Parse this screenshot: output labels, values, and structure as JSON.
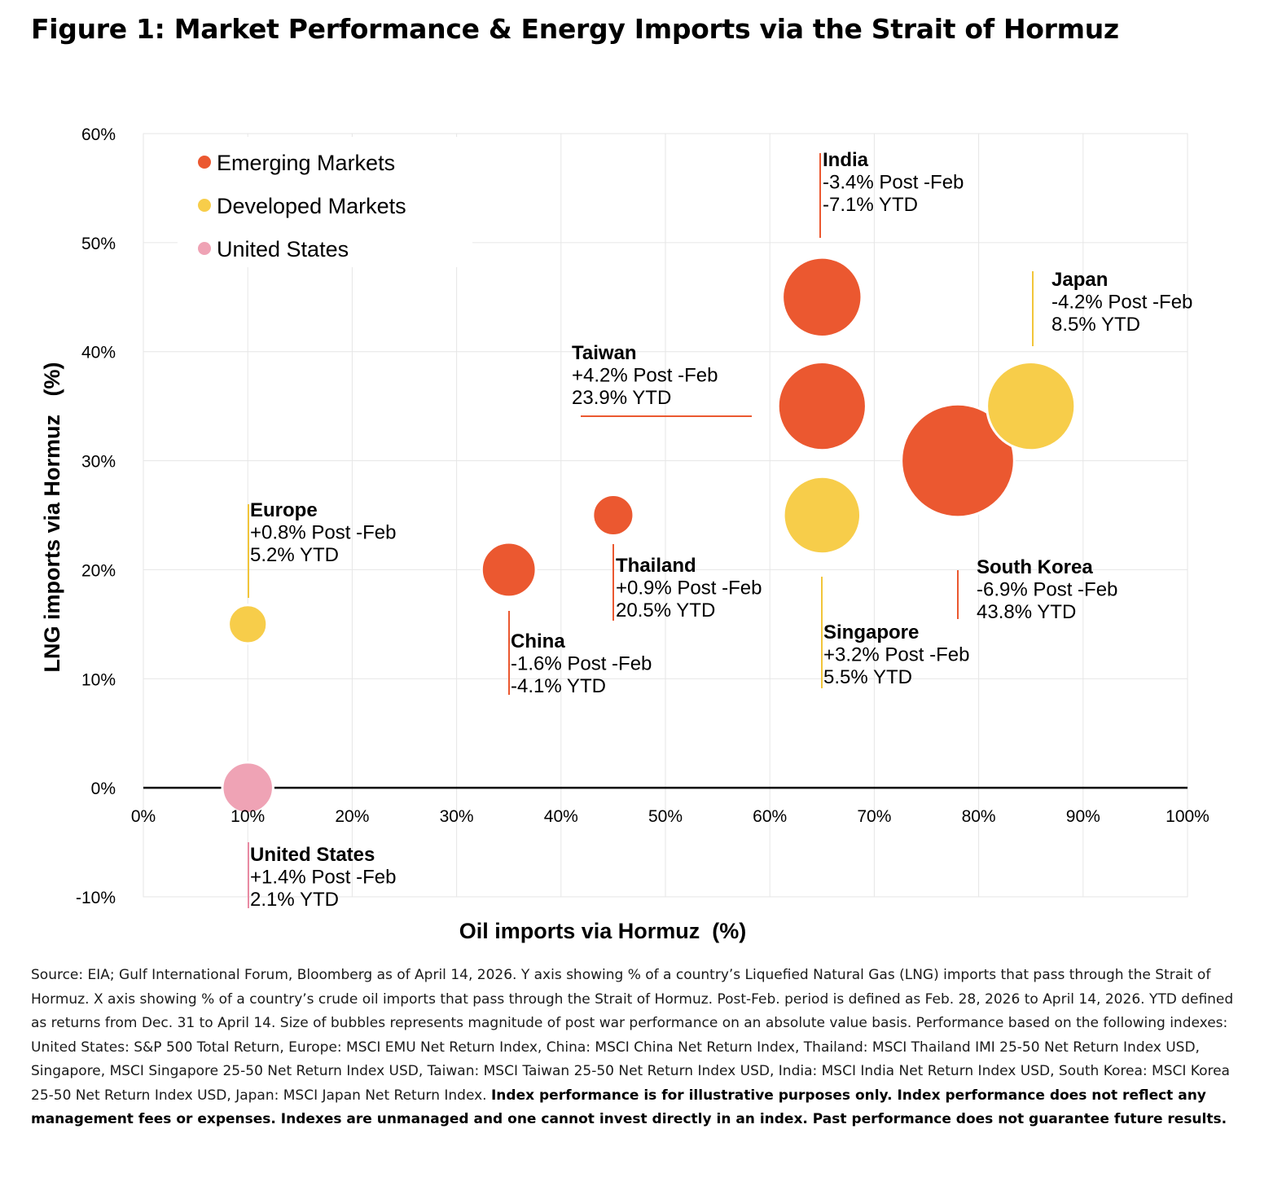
{
  "title": "Figure 1: Market Performance & Energy Imports via the Strait of Hormuz",
  "chart_data": {
    "type": "scatter",
    "xlabel": "Oil imports via Hormuz  (%)",
    "ylabel": "LNG imports via Hormuz   (%)",
    "xlim": [
      0,
      100
    ],
    "ylim": [
      -10,
      60
    ],
    "x_ticks": [
      "0%",
      "10%",
      "20%",
      "30%",
      "40%",
      "50%",
      "60%",
      "70%",
      "80%",
      "90%",
      "100%"
    ],
    "y_ticks": [
      "-10%",
      "0%",
      "10%",
      "20%",
      "30%",
      "40%",
      "50%",
      "60%"
    ],
    "grid": true,
    "legend_position": "top-left",
    "legend": [
      {
        "label": "Emerging Markets",
        "color": "#EB5830"
      },
      {
        "label": "Developed Markets",
        "color": "#F7CD4A"
      },
      {
        "label": "United States",
        "color": "#EFA3B5"
      }
    ],
    "points": [
      {
        "name": "United States",
        "group": "United States",
        "x": 10,
        "y": 0,
        "post_feb": "+1.4% Post -Feb",
        "ytd": "2.1% YTD",
        "magnitude": 1.4,
        "color": "#EFA3B5"
      },
      {
        "name": "Europe",
        "group": "Developed Markets",
        "x": 10,
        "y": 15,
        "post_feb": "+0.8% Post -Feb",
        "ytd": "5.2% YTD",
        "magnitude": 0.8,
        "color": "#F7CD4A"
      },
      {
        "name": "China",
        "group": "Emerging Markets",
        "x": 35,
        "y": 20,
        "post_feb": "-1.6% Post -Feb",
        "ytd": "-4.1% YTD",
        "magnitude": 1.6,
        "color": "#EB5830"
      },
      {
        "name": "Thailand",
        "group": "Emerging Markets",
        "x": 45,
        "y": 25,
        "post_feb": "+0.9% Post -Feb",
        "ytd": "20.5% YTD",
        "magnitude": 0.9,
        "color": "#EB5830"
      },
      {
        "name": "India",
        "group": "Emerging Markets",
        "x": 65,
        "y": 45,
        "post_feb": "-3.4% Post -Feb",
        "ytd": "-7.1% YTD",
        "magnitude": 3.4,
        "color": "#EB5830"
      },
      {
        "name": "South Korea",
        "group": "Emerging Markets",
        "x": 78,
        "y": 30,
        "post_feb": "-6.9% Post -Feb",
        "ytd": "43.8% YTD",
        "magnitude": 6.9,
        "color": "#EB5830"
      },
      {
        "name": "Taiwan",
        "group": "Emerging Markets",
        "x": 65,
        "y": 35,
        "post_feb": "+4.2% Post -Feb",
        "ytd": "23.9% YTD",
        "magnitude": 4.2,
        "color": "#EB5830"
      },
      {
        "name": "Singapore",
        "group": "Developed Markets",
        "x": 65,
        "y": 25,
        "post_feb": "+3.2% Post -Feb",
        "ytd": "5.5% YTD",
        "magnitude": 3.2,
        "color": "#F7CD4A"
      },
      {
        "name": "Japan",
        "group": "Developed Markets",
        "x": 85,
        "y": 35,
        "post_feb": "-4.2% Post -Feb",
        "ytd": "8.5% YTD",
        "magnitude": 4.2,
        "color": "#F7CD4A"
      }
    ]
  },
  "footnote": {
    "text": "Source: EIA; Gulf International Forum, Bloomberg as of April 14, 2026. Y axis showing % of a country’s Liquefied Natural Gas (LNG) imports that pass through the Strait of Hormuz. X axis showing % of a country’s crude oil imports that pass through the Strait of Hormuz. Post-Feb. period is defined as Feb. 28, 2026 to April 14, 2026. YTD defined as returns from Dec. 31 to April 14. Size of bubbles represents magnitude of post war performance on an absolute value basis. Performance based on the following indexes: United States: S&P 500 Total Return, Europe: MSCI EMU Net Return Index, China: MSCI China Net Return Index, Thailand: MSCI Thailand IMI 25-50 Net Return Index USD, Singapore, MSCI Singapore 25-50 Net Return Index USD, Taiwan: MSCI Taiwan 25-50 Net Return Index USD, India: MSCI India Net Return Index USD, South Korea: MSCI Korea 25-50 Net Return Index USD, Japan: MSCI Japan Net Return Index. ",
    "bold": "Index performance is for illustrative purposes only. Index performance does not reflect any management fees or expenses. Indexes are unmanaged and one cannot invest directly in an index. Past performance does not guarantee future results."
  }
}
